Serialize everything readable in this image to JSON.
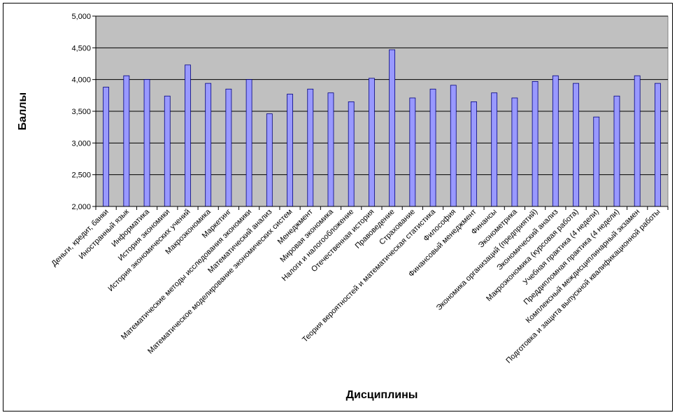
{
  "chart_data": {
    "type": "bar",
    "title": "",
    "xlabel": "Дисциплины",
    "ylabel": "Баллы",
    "ylim": [
      2.0,
      5.0
    ],
    "yticks": [
      "2,000",
      "2,500",
      "3,000",
      "3,500",
      "4,000",
      "4,500",
      "5,000"
    ],
    "grid": true,
    "legend": "none",
    "colors": {
      "plot_background": "#c0c0c0",
      "bar_fill": "#9999ff",
      "bar_stroke": "#000080",
      "gridline": "#000000"
    },
    "categories": [
      "Деньги, кредит, банки",
      "Иностранный язык",
      "Информатика",
      "История экономики",
      "История экономических учений",
      "Макроэкономика",
      "Маркетинг",
      "Математические методы исследования экономики",
      "Математический анализ",
      "Математическое моделирование экономических систем",
      "Менеджмент",
      "Мировая экономика",
      "Налоги и налогообложение",
      "Отечественная история",
      "Правоведение",
      "Страхование",
      "Теория вероятностей и математическая статистика",
      "Философия",
      "Финансовый менеджмент",
      "Финансы",
      "Эконометрика",
      "Экономика организаций (предприятий)",
      "Экономический анализ",
      "Макроэкономика (курсовая работа)",
      "Учебная практика (4 недели)",
      "Преддипломная практика (4 недели)",
      "Комплексный междисциплинарный экзамен",
      "Подготовка и защита выпускной квалификационной работы"
    ],
    "values": [
      3.88,
      4.06,
      4.0,
      3.74,
      4.23,
      3.94,
      3.85,
      4.0,
      3.46,
      3.77,
      3.85,
      3.79,
      3.65,
      4.02,
      4.47,
      3.71,
      3.85,
      3.91,
      3.65,
      3.79,
      3.71,
      3.97,
      4.06,
      3.94,
      3.41,
      3.74,
      4.06,
      3.94
    ]
  }
}
